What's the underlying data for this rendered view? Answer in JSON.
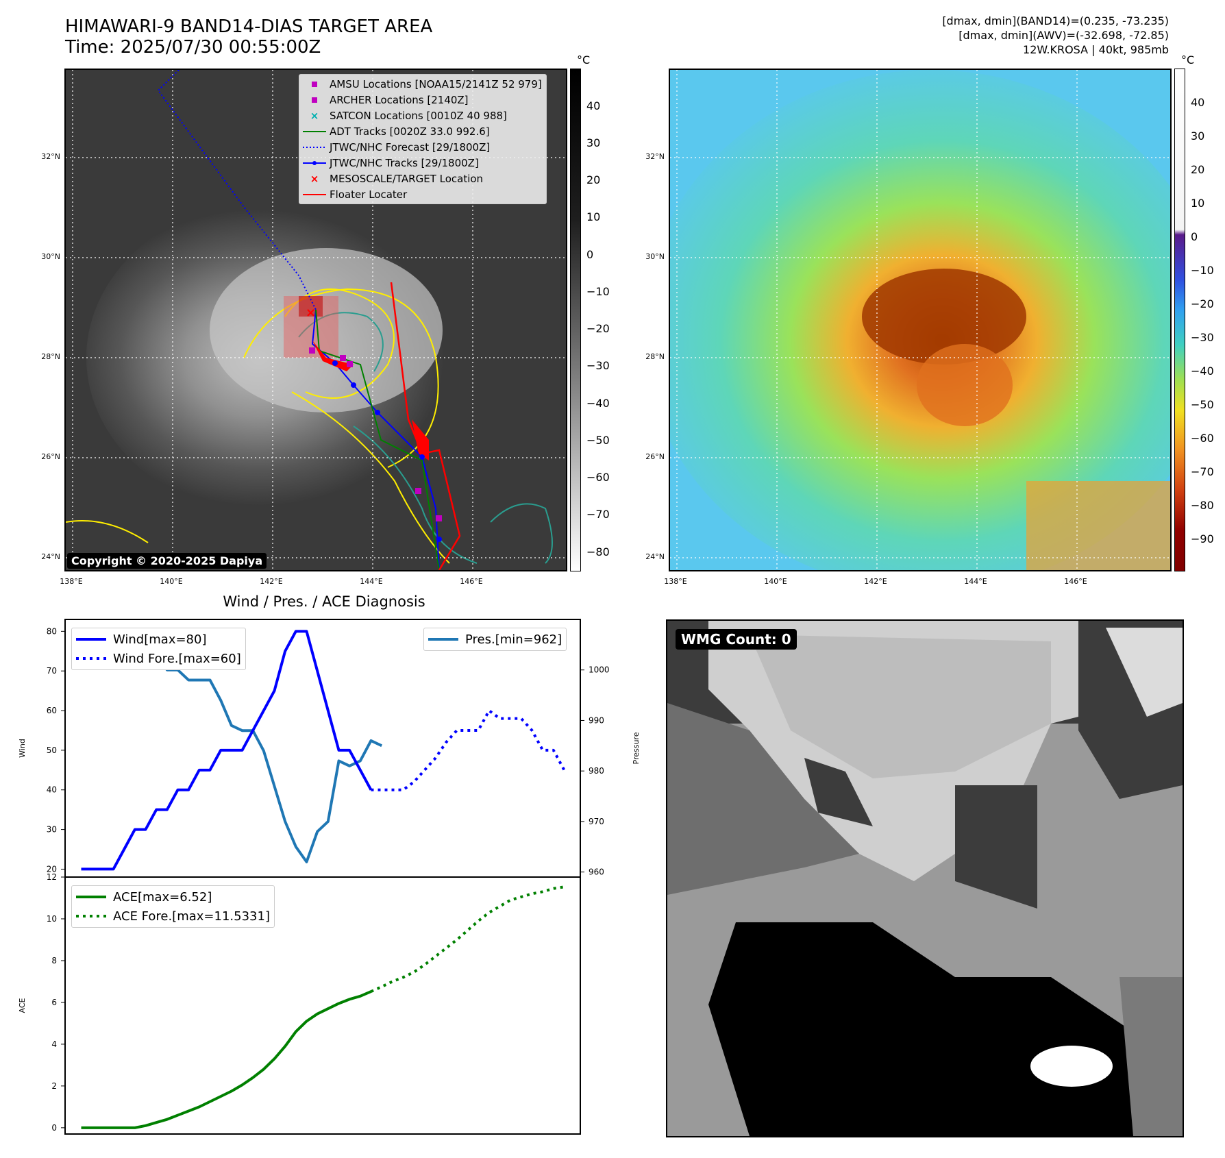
{
  "header": {
    "title_line1": "HIMAWARI-9 BAND14-DIAS TARGET AREA",
    "title_line2": "Time: 2025/07/30 00:55:00Z",
    "right_line1": "[dmax, dmin](BAND14)=(0.235, -73.235)",
    "right_line2": "[dmax, dmin](AWV)=(-32.698, -72.85)",
    "right_line3": "12W.KROSA | 40kt, 985mb"
  },
  "map_axes": {
    "lat_labels": [
      "32°N",
      "30°N",
      "28°N",
      "26°N",
      "24°N"
    ],
    "lon_labels": [
      "138°E",
      "140°E",
      "142°E",
      "144°E",
      "146°E"
    ]
  },
  "colorbar_gray": {
    "unit": "°C",
    "ticks": [
      "40",
      "30",
      "20",
      "10",
      "0",
      "−10",
      "−20",
      "−30",
      "−40",
      "−50",
      "−60",
      "−70",
      "−80"
    ]
  },
  "colorbar_color": {
    "unit": "°C",
    "ticks": [
      "40",
      "30",
      "20",
      "10",
      "0",
      "−10",
      "−20",
      "−30",
      "−40",
      "−50",
      "−60",
      "−70",
      "−80",
      "−90"
    ]
  },
  "map_legend": [
    {
      "label": "AMSU Locations [NOAA15/2141Z 52 979]",
      "icon": "magenta-square",
      "color": "#c000c0"
    },
    {
      "label": "ARCHER Locations [2140Z]",
      "icon": "magenta-square",
      "color": "#c000c0"
    },
    {
      "label": "SATCON Locations [0010Z 40 988]",
      "icon": "cyan-x",
      "color": "#00b0b0"
    },
    {
      "label": "ADT Tracks [0020Z 33.0 992.6]",
      "icon": "green-line",
      "color": "#008000"
    },
    {
      "label": "JTWC/NHC Forecast [29/1800Z]",
      "icon": "blue-dotted-line",
      "color": "#0000ff"
    },
    {
      "label": "JTWC/NHC Tracks [29/1800Z]",
      "icon": "blue-dot-line",
      "color": "#0000ff"
    },
    {
      "label": "MESOSCALE/TARGET Location",
      "icon": "red-x",
      "color": "#ff0000"
    },
    {
      "label": "Floater Locater",
      "icon": "red-line",
      "color": "#ff0000"
    }
  ],
  "copyright": "Copyright © 2020-2025 Dapiya",
  "wmg_label": "WMG Count: 0",
  "chart_data": [
    {
      "type": "line",
      "title": "Wind / Pres. / ACE Diagnosis",
      "ylabel": "Wind",
      "ylabel_right": "Pressure",
      "ylim": [
        18,
        83
      ],
      "ylim_right": [
        959,
        1010
      ],
      "yticks": [
        "80",
        "70",
        "60",
        "50",
        "40",
        "30",
        "20"
      ],
      "yticks_right": [
        "1000",
        "990",
        "980",
        "970",
        "960"
      ],
      "series": [
        {
          "name": "Wind[max=80]",
          "color": "#0000ff",
          "style": "solid",
          "axis": "left",
          "x": [
            0,
            1,
            2,
            3,
            4,
            5,
            6,
            7,
            8,
            9,
            10,
            11,
            12,
            13,
            14,
            15,
            16,
            17,
            18,
            19,
            20,
            21,
            22,
            23,
            24,
            25,
            26,
            27
          ],
          "y": [
            20,
            20,
            20,
            20,
            25,
            30,
            30,
            35,
            35,
            40,
            40,
            45,
            45,
            50,
            50,
            50,
            55,
            60,
            65,
            75,
            80,
            80,
            70,
            60,
            50,
            50,
            45,
            40
          ]
        },
        {
          "name": "Wind Fore.[max=60]",
          "color": "#0000ff",
          "style": "dotted",
          "axis": "left",
          "x": [
            27,
            28,
            29,
            30,
            31,
            32,
            33,
            34,
            35,
            36,
            37,
            38,
            39,
            40,
            41,
            42,
            43,
            44,
            45
          ],
          "y": [
            40,
            40,
            40,
            40,
            42,
            45,
            48,
            52,
            55,
            55,
            55,
            60,
            58,
            58,
            58,
            55,
            50,
            50,
            45
          ]
        },
        {
          "name": "Pres.[min=962]",
          "color": "#1f77b4",
          "style": "solid",
          "axis": "right",
          "x": [
            0,
            1,
            2,
            3,
            4,
            5,
            6,
            7,
            8,
            9,
            10,
            11,
            12,
            13,
            14,
            15,
            16,
            17,
            18,
            19,
            20,
            21,
            22,
            23,
            24,
            25,
            26,
            27,
            28
          ],
          "y": [
            1008,
            1008,
            1008,
            1008,
            1005,
            1005,
            1004,
            1004,
            1000,
            1000,
            998,
            998,
            998,
            994,
            989,
            988,
            988,
            984,
            977,
            970,
            965,
            962,
            968,
            970,
            982,
            981,
            982,
            986,
            985
          ]
        }
      ]
    },
    {
      "type": "line",
      "ylabel": "ACE",
      "ylim": [
        -0.3,
        12
      ],
      "yticks": [
        "12",
        "10",
        "8",
        "6",
        "4",
        "2",
        "0"
      ],
      "series": [
        {
          "name": "ACE[max=6.52]",
          "color": "#008000",
          "style": "solid",
          "x": [
            0,
            1,
            2,
            3,
            4,
            5,
            6,
            7,
            8,
            9,
            10,
            11,
            12,
            13,
            14,
            15,
            16,
            17,
            18,
            19,
            20,
            21,
            22,
            23,
            24,
            25,
            26,
            27
          ],
          "y": [
            0,
            0,
            0,
            0,
            0,
            0,
            0.1,
            0.25,
            0.4,
            0.6,
            0.8,
            1.0,
            1.25,
            1.5,
            1.75,
            2.05,
            2.4,
            2.8,
            3.3,
            3.9,
            4.6,
            5.1,
            5.45,
            5.7,
            5.95,
            6.15,
            6.3,
            6.52
          ]
        },
        {
          "name": "ACE Fore.[max=11.5331]",
          "color": "#008000",
          "style": "dotted",
          "x": [
            27,
            28,
            29,
            30,
            31,
            32,
            33,
            34,
            35,
            36,
            37,
            38,
            39,
            40,
            41,
            42,
            43,
            44,
            45
          ],
          "y": [
            6.52,
            6.75,
            7.0,
            7.2,
            7.45,
            7.8,
            8.2,
            8.6,
            9.0,
            9.45,
            9.9,
            10.3,
            10.6,
            10.9,
            11.05,
            11.2,
            11.3,
            11.45,
            11.53
          ]
        }
      ]
    }
  ]
}
